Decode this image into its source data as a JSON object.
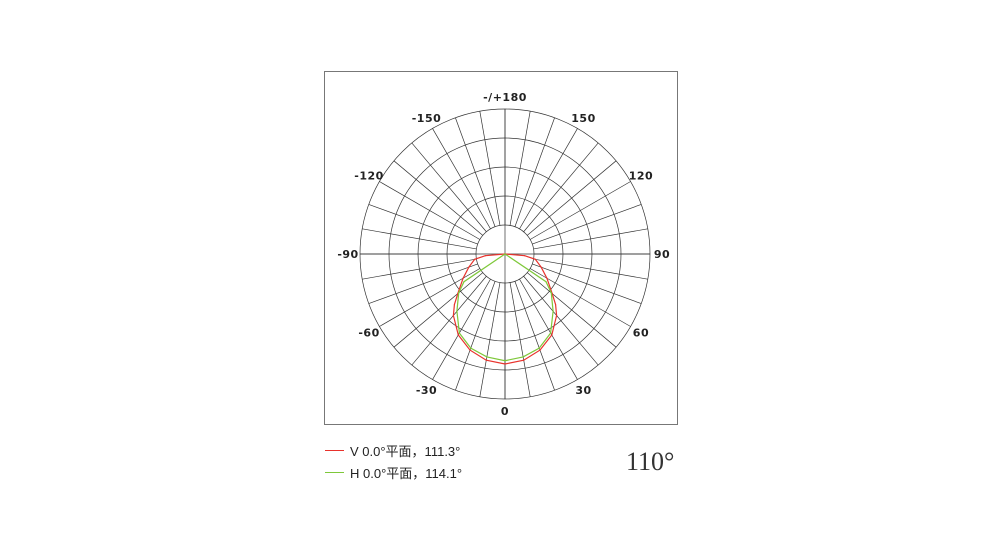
{
  "chart_data": {
    "type": "polar",
    "angle_ticks": [
      "0",
      "30",
      "60",
      "90",
      "120",
      "150",
      "-/+180",
      "-150",
      "-120",
      "-90",
      "-60",
      "-30"
    ],
    "angle_tick_values": [
      0,
      30,
      60,
      90,
      120,
      150,
      180,
      -150,
      -120,
      -90,
      -60,
      -30
    ],
    "grid": true,
    "spoke_step_deg": 10,
    "rings": 5,
    "series": [
      {
        "name": "V 0.0°平面，111.3°",
        "color": "#e8322c",
        "angles": [
          0,
          10,
          20,
          30,
          40,
          45,
          50,
          60,
          70,
          80,
          85,
          90
        ],
        "values": [
          100,
          98,
          93,
          85,
          73,
          65,
          56,
          44,
          35,
          28,
          18,
          0
        ]
      },
      {
        "name": "H 0.0°平面，114.1°",
        "color": "#7ec83a",
        "angles": [
          0,
          10,
          20,
          30,
          40,
          50,
          56,
          57
        ],
        "values": [
          97,
          95,
          91,
          83,
          68,
          55,
          45,
          0
        ]
      }
    ],
    "legend_position": "bottom-left",
    "annotation": "110°"
  }
}
